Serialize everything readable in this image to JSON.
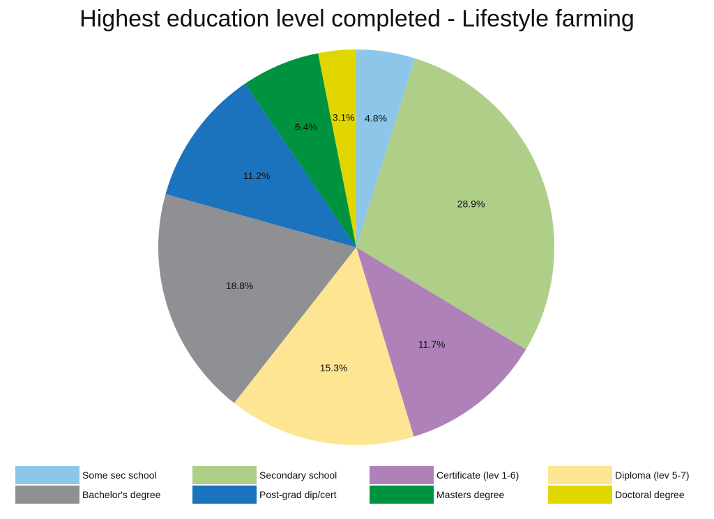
{
  "chart_data": {
    "type": "pie",
    "title": "Highest education level completed - Lifestyle farming",
    "slices": [
      {
        "label": "Some sec school",
        "value": 4.8,
        "display": "4.8%",
        "color": "#8ec6ea"
      },
      {
        "label": "Secondary school",
        "value": 28.9,
        "display": "28.9%",
        "color": "#afcf89"
      },
      {
        "label": "Certificate (lev 1-6)",
        "value": 11.7,
        "display": "11.7%",
        "color": "#ae82b9"
      },
      {
        "label": "Diploma (lev 5-7)",
        "value": 15.3,
        "display": "15.3%",
        "color": "#fde594"
      },
      {
        "label": "Bachelor's degree",
        "value": 18.8,
        "display": "18.8%",
        "color": "#8f9093"
      },
      {
        "label": "Post-grad dip/cert",
        "value": 11.2,
        "display": "11.2%",
        "color": "#1b72bd"
      },
      {
        "label": "Masters degree",
        "value": 6.4,
        "display": "6.4%",
        "color": "#00933f"
      },
      {
        "label": "Doctoral degree",
        "value": 3.1,
        "display": "3.1%",
        "color": "#e1d600"
      }
    ],
    "start_angle": "12 o'clock",
    "direction": "clockwise",
    "legend_position": "bottom"
  }
}
